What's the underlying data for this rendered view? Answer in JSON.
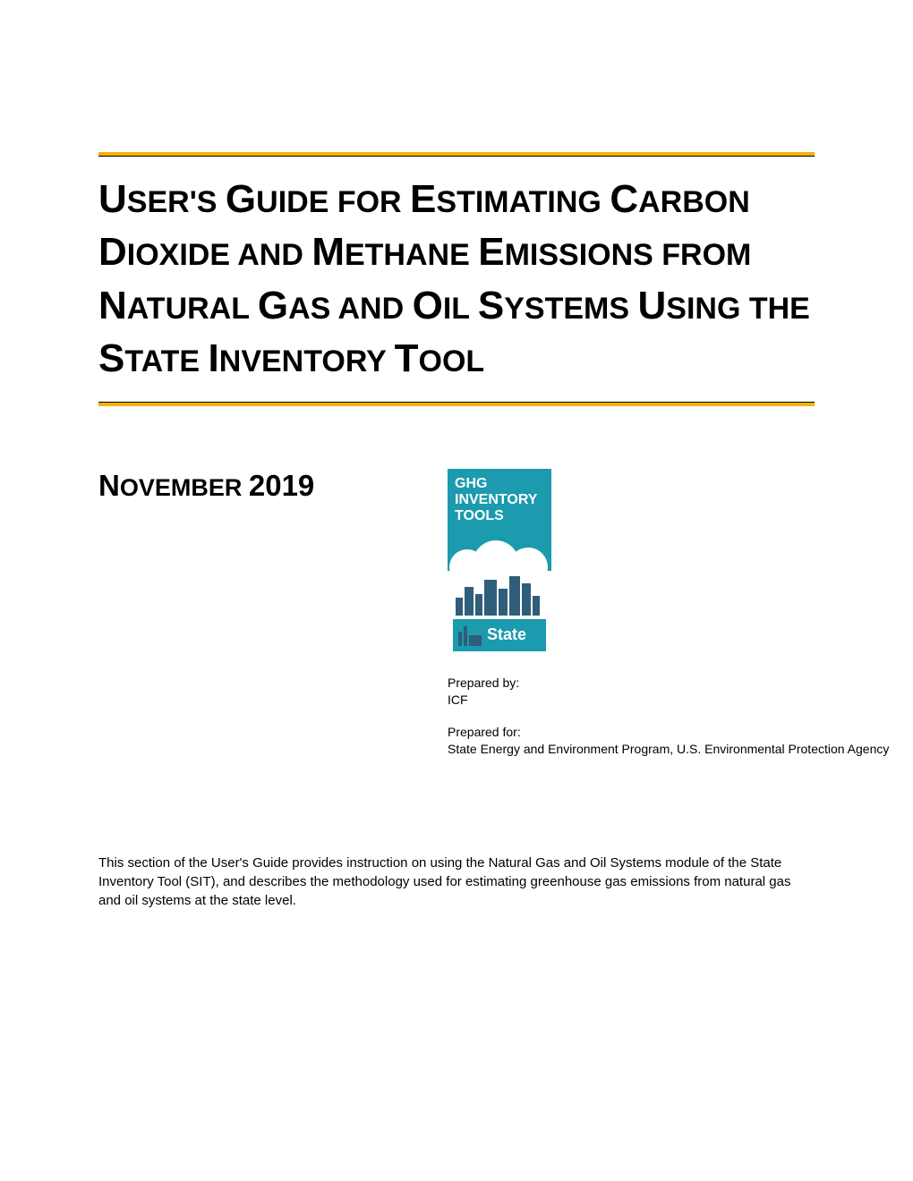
{
  "colors": {
    "accent_yellow": "#f2b400",
    "logo_teal": "#1c9aae",
    "logo_dark": "#2e5e7a",
    "text": "#000000",
    "background": "#ffffff",
    "white": "#ffffff"
  },
  "typography": {
    "body_font": "Verdana",
    "title_fontsize": 34,
    "title_cap_fontsize": 44,
    "date_fontsize": 27,
    "body_fontsize": 15,
    "small_fontsize": 14
  },
  "title": {
    "html": "<span class=\"cap\">U</span>SER'S <span class=\"cap\">G</span>UIDE FOR <span class=\"cap\">E</span>STIMATING <span class=\"cap\">C</span>ARBON <span class=\"cap\">D</span>IOXIDE AND <span class=\"cap\">M</span>ETHANE <span class=\"cap\">E</span>MISSIONS FROM <span class=\"cap\">N</span>ATURAL <span class=\"cap\">G</span>AS AND <span class=\"cap\">O</span>IL <span class=\"cap\">S</span>YSTEMS <span class=\"cap\">U</span>SING THE <span class=\"cap\">S</span>TATE <span class=\"cap\">I</span>NVENTORY <span class=\"cap\">T</span>OOL"
  },
  "date": {
    "html": "<span class=\"cap\">N</span>OVEMBER <span class=\"cap\">2019</span>"
  },
  "logo": {
    "line1": "GHG",
    "line2": "INVENTORY",
    "line3": "TOOLS",
    "badge": "State"
  },
  "prepared": {
    "by_label": "Prepared by:",
    "by_value": "ICF",
    "for_label": "Prepared for:",
    "for_value": "State Energy and Environment Program, U.S.  Environmental Protection Agency"
  },
  "description": "This section of the User's Guide provides instruction on using the Natural Gas and Oil Systems module of the State Inventory Tool (SIT), and describes the methodology used for estimating greenhouse gas emissions from natural gas and oil systems at the state level."
}
